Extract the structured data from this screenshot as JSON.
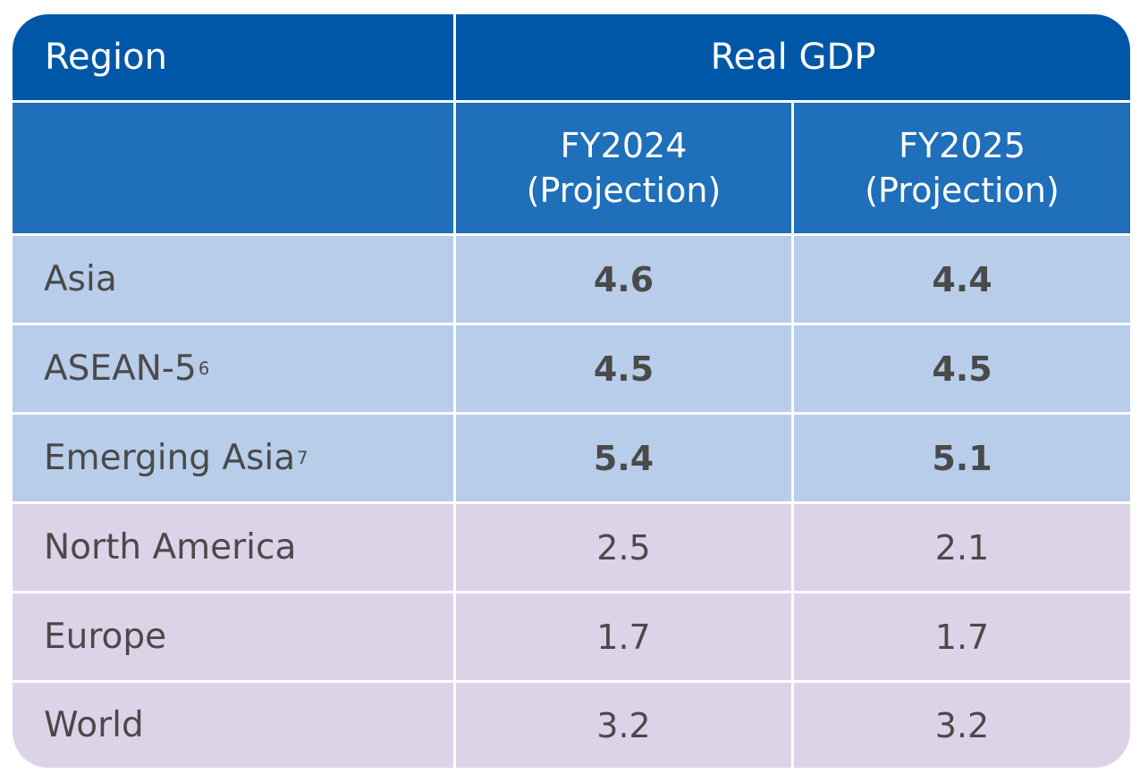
{
  "chart_data": {
    "type": "table",
    "header": {
      "region": "Region",
      "group": "Real GDP"
    },
    "columns": [
      {
        "year": "FY2024",
        "note": "(Projection)"
      },
      {
        "year": "FY2025",
        "note": "(Projection)"
      }
    ],
    "rows": [
      {
        "region": "Asia",
        "sup": "",
        "fy2024": "4.6",
        "fy2025": "4.4"
      },
      {
        "region": "ASEAN-5",
        "sup": "6",
        "fy2024": "4.5",
        "fy2025": "4.5"
      },
      {
        "region": "Emerging Asia",
        "sup": "7",
        "fy2024": "5.4",
        "fy2025": "5.1"
      },
      {
        "region": "North America",
        "sup": "",
        "fy2024": "2.5",
        "fy2025": "2.1"
      },
      {
        "region": "Europe",
        "sup": "",
        "fy2024": "1.7",
        "fy2025": "1.7"
      },
      {
        "region": "World",
        "sup": "",
        "fy2024": "3.2",
        "fy2025": "3.2"
      }
    ],
    "colors": {
      "header_top": "#0057a8",
      "header_sub": "#1f6fba",
      "asia_rows": "#b8cdea",
      "other_rows": "#ddd3e8",
      "text": "#4a4a4a"
    }
  }
}
